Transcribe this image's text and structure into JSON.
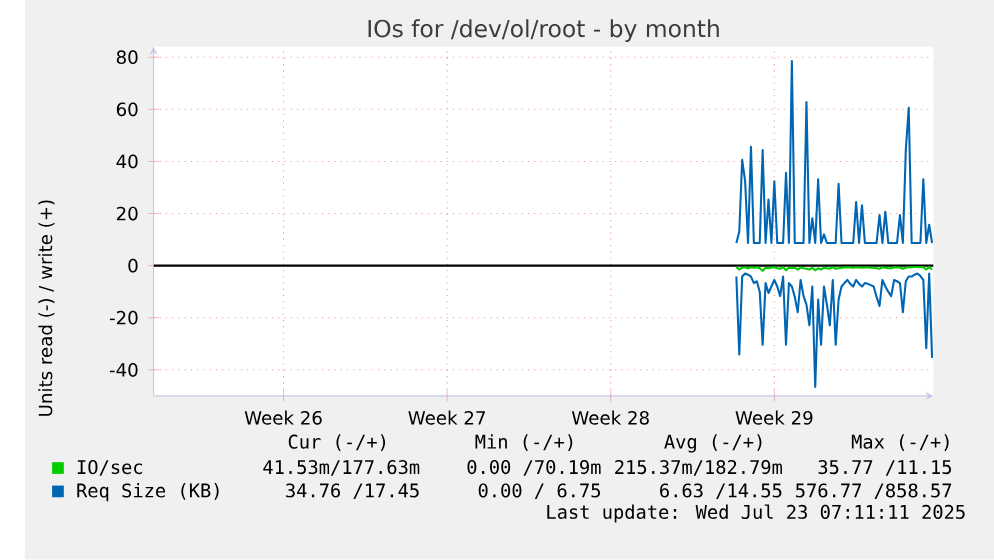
{
  "chart_data": {
    "type": "line",
    "title": "IOs for /dev/ol/root - by month",
    "ylabel": "Units read (-) / write (+)",
    "categories": [
      null,
      null,
      null,
      null,
      null,
      null,
      null,
      null,
      null,
      null,
      null,
      null,
      null,
      null,
      null,
      null,
      null,
      null,
      null,
      null,
      null,
      null,
      null,
      null,
      null,
      null,
      null,
      null,
      null,
      null,
      null,
      null,
      null,
      null,
      null,
      null,
      null,
      null,
      null,
      null,
      null,
      null,
      null,
      null,
      "Week 26",
      null,
      null,
      null,
      null,
      null,
      null,
      null,
      null,
      null,
      null,
      null,
      null,
      null,
      null,
      null,
      null,
      null,
      null,
      null,
      null,
      null,
      null,
      null,
      null,
      null,
      null,
      null,
      null,
      null,
      null,
      null,
      null,
      null,
      null,
      null,
      null,
      null,
      null,
      null,
      null,
      null,
      null,
      null,
      null,
      null,
      null,
      null,
      null,
      null,
      null,
      null,
      null,
      null,
      null,
      null,
      "Week 27",
      null,
      null,
      null,
      null,
      null,
      null,
      null,
      null,
      null,
      null,
      null,
      null,
      null,
      null,
      null,
      null,
      null,
      null,
      null,
      null,
      null,
      null,
      null,
      null,
      null,
      null,
      null,
      null,
      null,
      null,
      null,
      null,
      null,
      null,
      null,
      null,
      null,
      null,
      null,
      null,
      null,
      null,
      null,
      null,
      null,
      null,
      null,
      null,
      null,
      null,
      null,
      null,
      null,
      null,
      null,
      "Week 28",
      null,
      null,
      null,
      null,
      null,
      null,
      null,
      null,
      null,
      null,
      null,
      null,
      null,
      null,
      null,
      null,
      null,
      null,
      null,
      null,
      null,
      null,
      null,
      null,
      null,
      null,
      null,
      null,
      null,
      null,
      null,
      null,
      null,
      null,
      null,
      null,
      null,
      null,
      null,
      null,
      null,
      null,
      null,
      null,
      null,
      null,
      null,
      null,
      null,
      null,
      null,
      null,
      null,
      null,
      null,
      "Week 29",
      null,
      null,
      null,
      null,
      null,
      null,
      null,
      null,
      null,
      null,
      null,
      null,
      null,
      null,
      null,
      null,
      null,
      null,
      null,
      null,
      null,
      null,
      null,
      null,
      null,
      null,
      null,
      null,
      null,
      null,
      null,
      null,
      null,
      null,
      null,
      null,
      null,
      null,
      null,
      null,
      null,
      null,
      null,
      null,
      null,
      null,
      null,
      null,
      null,
      null,
      null,
      null,
      null,
      null
    ],
    "ylim": [
      -50,
      84
    ],
    "yticks": [
      -40,
      -20,
      0,
      20,
      40,
      60,
      80
    ],
    "grid": true,
    "legend": "bottom",
    "ref_lines": [
      {
        "axis": "y",
        "value": 0,
        "color": "#000000"
      }
    ],
    "series": [
      {
        "name": "Req Size (KB)",
        "color": "#0066b3",
        "values": [
          null,
          null,
          null,
          null,
          null,
          null,
          null,
          null,
          null,
          null,
          null,
          null,
          null,
          null,
          null,
          null,
          null,
          null,
          null,
          null,
          null,
          null,
          null,
          null,
          null,
          null,
          null,
          null,
          null,
          null,
          null,
          null,
          null,
          null,
          null,
          null,
          null,
          null,
          null,
          null,
          null,
          null,
          null,
          null,
          null,
          null,
          null,
          null,
          null,
          null,
          null,
          null,
          null,
          null,
          null,
          null,
          null,
          null,
          null,
          null,
          null,
          null,
          null,
          null,
          null,
          null,
          null,
          null,
          null,
          null,
          null,
          null,
          null,
          null,
          null,
          null,
          null,
          null,
          null,
          null,
          null,
          null,
          null,
          null,
          null,
          null,
          null,
          null,
          null,
          null,
          null,
          null,
          null,
          null,
          null,
          null,
          null,
          null,
          null,
          null,
          null,
          null,
          null,
          null,
          null,
          null,
          null,
          null,
          null,
          null,
          null,
          null,
          null,
          null,
          null,
          null,
          null,
          null,
          null,
          null,
          null,
          null,
          null,
          null,
          null,
          null,
          null,
          null,
          null,
          null,
          null,
          null,
          null,
          null,
          null,
          null,
          null,
          null,
          null,
          null,
          null,
          null,
          null,
          null,
          null,
          null,
          null,
          null,
          null,
          null,
          null,
          null,
          null,
          null,
          null,
          null,
          null,
          null,
          null,
          null,
          null,
          null,
          null,
          null,
          null,
          null,
          null,
          null,
          null,
          null,
          null,
          null,
          null,
          null,
          null,
          null,
          null,
          null,
          null,
          null,
          null,
          null,
          null,
          null,
          null,
          null,
          null,
          null,
          null,
          null,
          null,
          null,
          null,
          null,
          null,
          null,
          null,
          null,
          null,
          8.7,
          13,
          40.6,
          32.4,
          8.7,
          45.6,
          8.7,
          8.7,
          8.7,
          44.4,
          8.7,
          25.4,
          8.7,
          32.4,
          8.7,
          8.7,
          8.7,
          35.6,
          8.7,
          78.5,
          8.7,
          8.7,
          8.7,
          8.7,
          62.8,
          8.7,
          18.2,
          8.7,
          33.1,
          8.7,
          12,
          8.7,
          8.7,
          8.7,
          8.7,
          31.4,
          8.7,
          8.7,
          8.7,
          8.7,
          8.7,
          24.4,
          8.7,
          23.2,
          8.7,
          8.7,
          8.7,
          8.7,
          8.7,
          19.4,
          8.7,
          20.7,
          8.7,
          8.7,
          8.7,
          8.7,
          19.4,
          8.7,
          44.4,
          60.6,
          8.7,
          8.7,
          8.7,
          8.7,
          33.1,
          8.7,
          15.7,
          8.7
        ]
      },
      {
        "color": "#0066b3",
        "values": [
          null,
          null,
          null,
          null,
          null,
          null,
          null,
          null,
          null,
          null,
          null,
          null,
          null,
          null,
          null,
          null,
          null,
          null,
          null,
          null,
          null,
          null,
          null,
          null,
          null,
          null,
          null,
          null,
          null,
          null,
          null,
          null,
          null,
          null,
          null,
          null,
          null,
          null,
          null,
          null,
          null,
          null,
          null,
          null,
          null,
          null,
          null,
          null,
          null,
          null,
          null,
          null,
          null,
          null,
          null,
          null,
          null,
          null,
          null,
          null,
          null,
          null,
          null,
          null,
          null,
          null,
          null,
          null,
          null,
          null,
          null,
          null,
          null,
          null,
          null,
          null,
          null,
          null,
          null,
          null,
          null,
          null,
          null,
          null,
          null,
          null,
          null,
          null,
          null,
          null,
          null,
          null,
          null,
          null,
          null,
          null,
          null,
          null,
          null,
          null,
          null,
          null,
          null,
          null,
          null,
          null,
          null,
          null,
          null,
          null,
          null,
          null,
          null,
          null,
          null,
          null,
          null,
          null,
          null,
          null,
          null,
          null,
          null,
          null,
          null,
          null,
          null,
          null,
          null,
          null,
          null,
          null,
          null,
          null,
          null,
          null,
          null,
          null,
          null,
          null,
          null,
          null,
          null,
          null,
          null,
          null,
          null,
          null,
          null,
          null,
          null,
          null,
          null,
          null,
          null,
          null,
          null,
          null,
          null,
          null,
          null,
          null,
          null,
          null,
          null,
          null,
          null,
          null,
          null,
          null,
          null,
          null,
          null,
          null,
          null,
          null,
          null,
          null,
          null,
          null,
          null,
          null,
          null,
          null,
          null,
          null,
          null,
          null,
          null,
          null,
          null,
          null,
          null,
          null,
          null,
          null,
          null,
          null,
          null,
          -4.2,
          -34.1,
          -4.2,
          -3,
          -3.5,
          -4.2,
          -6.7,
          -6,
          -10,
          -30.4,
          -6.7,
          -10.5,
          -8,
          -5.5,
          -8,
          -11.7,
          -4.2,
          -30.4,
          -6.7,
          -8,
          -12,
          -17.9,
          -5.5,
          -11.7,
          -15,
          -22.9,
          -8,
          -46.6,
          -13,
          -30.4,
          -8,
          -15,
          -22.9,
          -5.5,
          -30.4,
          -13,
          -8,
          -6.7,
          -5.5,
          -7,
          -8,
          -5.5,
          -7,
          -8,
          -6.7,
          -7,
          -7.5,
          -8,
          -12,
          -15.5,
          -5.5,
          -8,
          -10,
          -11.7,
          -5.5,
          -6,
          -6.7,
          -17.9,
          -6,
          -4.2,
          -4.2,
          -3.5,
          -3,
          -4,
          -5.5,
          -31.7,
          -3,
          -35.4
        ]
      },
      {
        "name": "IO/sec",
        "color": "#00cc00",
        "values": [
          null,
          null,
          null,
          null,
          null,
          null,
          null,
          null,
          null,
          null,
          null,
          null,
          null,
          null,
          null,
          null,
          null,
          null,
          null,
          null,
          null,
          null,
          null,
          null,
          null,
          null,
          null,
          null,
          null,
          null,
          null,
          null,
          null,
          null,
          null,
          null,
          null,
          null,
          null,
          null,
          null,
          null,
          null,
          null,
          null,
          null,
          null,
          null,
          null,
          null,
          null,
          null,
          null,
          null,
          null,
          null,
          null,
          null,
          null,
          null,
          null,
          null,
          null,
          null,
          null,
          null,
          null,
          null,
          null,
          null,
          null,
          null,
          null,
          null,
          null,
          null,
          null,
          null,
          null,
          null,
          null,
          null,
          null,
          null,
          null,
          null,
          null,
          null,
          null,
          null,
          null,
          null,
          null,
          null,
          null,
          null,
          null,
          null,
          null,
          null,
          null,
          null,
          null,
          null,
          null,
          null,
          null,
          null,
          null,
          null,
          null,
          null,
          null,
          null,
          null,
          null,
          null,
          null,
          null,
          null,
          null,
          null,
          null,
          null,
          null,
          null,
          null,
          null,
          null,
          null,
          null,
          null,
          null,
          null,
          null,
          null,
          null,
          null,
          null,
          null,
          null,
          null,
          null,
          null,
          null,
          null,
          null,
          null,
          null,
          null,
          null,
          null,
          null,
          null,
          null,
          null,
          null,
          null,
          null,
          null,
          null,
          null,
          null,
          null,
          null,
          null,
          null,
          null,
          null,
          null,
          null,
          null,
          null,
          null,
          null,
          null,
          null,
          null,
          null,
          null,
          null,
          null,
          null,
          null,
          null,
          null,
          null,
          null,
          null,
          null,
          null,
          null,
          null,
          null,
          null,
          null,
          null,
          null,
          null,
          -0.5,
          -1.5,
          -0.8,
          -0.6,
          -1,
          -0.6,
          -0.8,
          -0.6,
          -1,
          -2,
          -0.8,
          -1,
          -0.7,
          -0.6,
          -1,
          -1.2,
          -0.6,
          -1.8,
          -0.8,
          -1,
          -0.8,
          -1.5,
          -0.7,
          -1,
          -1.2,
          -1.5,
          -0.8,
          -1.8,
          -1,
          -1.5,
          -0.8,
          -1,
          -1.2,
          -0.6,
          -1.2,
          -1,
          -0.8,
          -0.7,
          -0.6,
          -0.7,
          -0.8,
          -0.6,
          -0.7,
          -0.8,
          -0.7,
          -0.7,
          -0.8,
          -0.8,
          -1,
          -1.2,
          -0.6,
          -0.8,
          -1,
          -1,
          -0.6,
          -0.7,
          -0.7,
          -1.2,
          -0.7,
          -0.6,
          -0.6,
          -0.5,
          -0.5,
          -0.6,
          -0.6,
          -1.5,
          -0.5,
          -1.5
        ]
      }
    ],
    "annotations": [
      "Cur (-/+)",
      "Min (-/+)",
      "Avg (-/+)",
      "Max (-/+)",
      "41.53m/177.63m",
      "0.00 /70.19m",
      "215.37m/182.79m",
      "35.77 /11.15",
      "34.76 /17.45",
      "0.00 / 6.75",
      "6.63 /14.55",
      "576.77 /858.57",
      "Last update: Wed Jul 23 07:11:11 2025"
    ]
  }
}
